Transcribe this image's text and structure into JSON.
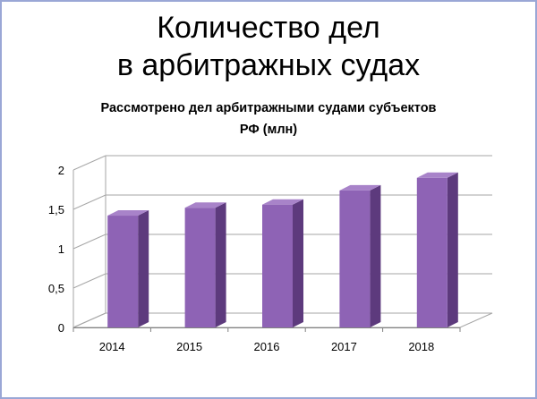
{
  "slide": {
    "title_line1": "Количество дел",
    "title_line2": "в арбитражных судах"
  },
  "chart_data": {
    "type": "bar",
    "title_line1": "Рассмотрено дел арбитражными судами субъектов",
    "title_line2": "РФ (млн)",
    "categories": [
      "2014",
      "2015",
      "2016",
      "2017",
      "2018"
    ],
    "values": [
      1.42,
      1.52,
      1.56,
      1.74,
      1.9
    ],
    "y_ticks": [
      0,
      0.5,
      1,
      1.5,
      2
    ],
    "y_tick_labels": [
      "0",
      "0,5",
      "1",
      "1,5",
      "2"
    ],
    "xlabel": "",
    "ylabel": "",
    "ylim": [
      0,
      2
    ],
    "grid": true,
    "legend": "none",
    "style": "3d",
    "colors": {
      "bar_front": "#8e63b5",
      "bar_side": "#5d3a7d",
      "bar_top": "#a883c9",
      "grid": "#a6a6a6"
    }
  }
}
